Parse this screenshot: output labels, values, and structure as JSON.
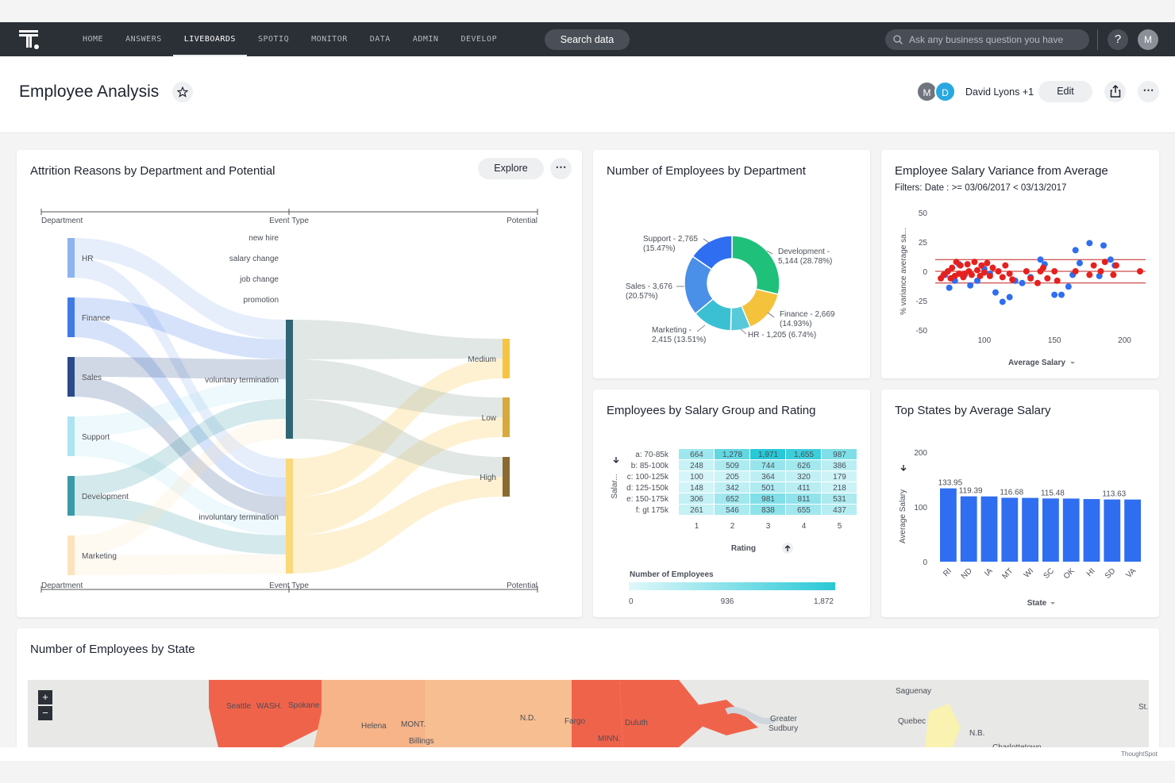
{
  "nav": {
    "items": [
      {
        "label": "HOME",
        "active": false
      },
      {
        "label": "ANSWERS",
        "active": false
      },
      {
        "label": "LIVEBOARDS",
        "active": true
      },
      {
        "label": "SPOTIQ",
        "active": false
      },
      {
        "label": "MONITOR",
        "active": false
      },
      {
        "label": "DATA",
        "active": false
      },
      {
        "label": "ADMIN",
        "active": false
      },
      {
        "label": "DEVELOP",
        "active": false
      }
    ],
    "search_button": "Search data",
    "ask_placeholder": "Ask any business question you have",
    "help_label": "?",
    "user_initial": "M"
  },
  "header": {
    "title": "Employee Analysis",
    "avatars": [
      "M",
      "D"
    ],
    "owner": "David Lyons +1",
    "edit_label": "Edit"
  },
  "sankey": {
    "title": "Attrition Reasons by Department and Potential",
    "explore_label": "Explore",
    "col_left": "Department",
    "col_mid": "Event Type",
    "col_right": "Potential",
    "departments": [
      "HR",
      "Finance",
      "Sales",
      "Support",
      "Development",
      "Marketing"
    ],
    "event_labels": [
      "new hire",
      "salary change",
      "job change",
      "promotion",
      "voluntary termination",
      "involuntary termination"
    ],
    "potentials": [
      "Medium",
      "Low",
      "High"
    ],
    "colors": {
      "HR": "#8fb3f0",
      "Finance": "#3f79e6",
      "Sales": "#2a4a8a",
      "Support": "#aee3f2",
      "Development": "#3a9aa6",
      "Marketing": "#fbe3bd",
      "voluntary": "#2f6674",
      "involuntary": "#fbd87a",
      "Medium": "#f6c443",
      "Low": "#d7a83d",
      "High": "#8a6a2e"
    }
  },
  "donut": {
    "title": "Number of Employees by Department",
    "chart_data": {
      "type": "pie",
      "title": "Number of Employees by Department",
      "slices": [
        {
          "label": "Development",
          "value": 5144,
          "pct": "28.78%",
          "color": "#1fc07a"
        },
        {
          "label": "Finance",
          "value": 2669,
          "pct": "14.93%",
          "color": "#f5c23c"
        },
        {
          "label": "HR",
          "value": 1205,
          "pct": "6.74%",
          "color": "#57c9d8"
        },
        {
          "label": "Marketing",
          "value": 2415,
          "pct": "13.51%",
          "color": "#3bbfd3"
        },
        {
          "label": "Sales",
          "value": 3676,
          "pct": "20.57%",
          "color": "#4a8fe8"
        },
        {
          "label": "Support",
          "value": 2765,
          "pct": "15.47%",
          "color": "#2f6ef0"
        }
      ]
    },
    "labels": [
      {
        "l1": "Support - 2,765",
        "l2": "(15.47%)"
      },
      {
        "l1": "Development -",
        "l2": "5,144 (28.78%)"
      },
      {
        "l1": "Sales - 3,676",
        "l2": "(20.57%)"
      },
      {
        "l1": "Finance - 2,669",
        "l2": "(14.93%)"
      },
      {
        "l1": "Marketing -",
        "l2": "2,415 (13.51%)"
      },
      {
        "l1": "HR - 1,205 (6.74%)",
        "l2": ""
      }
    ]
  },
  "scatter": {
    "title": "Employee Salary Variance from Average",
    "filter": "Filters: Date : >= 03/06/2017 < 03/13/2017",
    "chart_data": {
      "type": "scatter",
      "xlabel": "Average Salary",
      "ylabel": "% variance average sa...",
      "xlim": [
        65,
        215
      ],
      "ylim": [
        -50,
        50
      ],
      "xticks": [
        100,
        150,
        200
      ],
      "yticks": [
        50,
        25,
        0,
        -25,
        -50
      ],
      "ref_lines": [
        10,
        0,
        -10
      ],
      "series": [
        {
          "name": "",
          "color": "#2f6ef0",
          "points": [
            [
              72,
              -3
            ],
            [
              75,
              -14
            ],
            [
              79,
              -8
            ],
            [
              82,
              6
            ],
            [
              86,
              -3
            ],
            [
              90,
              -12
            ],
            [
              95,
              -8
            ],
            [
              100,
              2
            ],
            [
              104,
              -2
            ],
            [
              108,
              -18
            ],
            [
              113,
              -26
            ],
            [
              118,
              -22
            ],
            [
              122,
              -8
            ],
            [
              127,
              -10
            ],
            [
              133,
              -5
            ],
            [
              140,
              10
            ],
            [
              143,
              6
            ],
            [
              150,
              -20
            ],
            [
              155,
              -20
            ],
            [
              160,
              -13
            ],
            [
              163,
              -3
            ],
            [
              165,
              18
            ],
            [
              168,
              7
            ],
            [
              175,
              24
            ],
            [
              182,
              -4
            ],
            [
              185,
              22
            ],
            [
              190,
              10
            ],
            [
              193,
              5
            ]
          ]
        },
        {
          "name": "",
          "color": "#e5211f",
          "points": [
            [
              69,
              -6
            ],
            [
              71,
              -3
            ],
            [
              74,
              0
            ],
            [
              76,
              -6
            ],
            [
              77,
              3
            ],
            [
              79,
              -4
            ],
            [
              80,
              8
            ],
            [
              82,
              -2
            ],
            [
              83,
              5
            ],
            [
              85,
              -5
            ],
            [
              86,
              -2
            ],
            [
              88,
              6
            ],
            [
              89,
              0
            ],
            [
              91,
              -3
            ],
            [
              93,
              8
            ],
            [
              95,
              1
            ],
            [
              97,
              -4
            ],
            [
              98,
              5
            ],
            [
              100,
              -1
            ],
            [
              102,
              7
            ],
            [
              104,
              -4
            ],
            [
              106,
              3
            ],
            [
              110,
              0
            ],
            [
              113,
              -5
            ],
            [
              115,
              5
            ],
            [
              118,
              -2
            ],
            [
              120,
              -7
            ],
            [
              130,
              0
            ],
            [
              133,
              -6
            ],
            [
              138,
              -10
            ],
            [
              140,
              0
            ],
            [
              142,
              3
            ],
            [
              145,
              -6
            ],
            [
              150,
              0
            ],
            [
              152,
              -8
            ],
            [
              165,
              0
            ],
            [
              175,
              -3
            ],
            [
              178,
              5
            ],
            [
              183,
              0
            ],
            [
              186,
              8
            ],
            [
              192,
              -3
            ],
            [
              194,
              5
            ],
            [
              211,
              0
            ]
          ]
        }
      ]
    }
  },
  "heatmap": {
    "title": "Employees by Salary Group and Rating",
    "ylabel": "Salar...",
    "xlabel": "Rating",
    "legend_title": "Number of Employees",
    "legend_ticks": [
      "0",
      "936",
      "1,872"
    ],
    "chart_data": {
      "type": "heatmap",
      "rows": [
        "a: 70-85k",
        "b: 85-100k",
        "c: 100-125k",
        "d: 125-150k",
        "e: 150-175k",
        "f: gt 175k"
      ],
      "cols": [
        "1",
        "2",
        "3",
        "4",
        "5"
      ],
      "values": [
        [
          664,
          1278,
          1971,
          1655,
          987
        ],
        [
          248,
          509,
          744,
          626,
          386
        ],
        [
          100,
          205,
          364,
          320,
          179
        ],
        [
          148,
          342,
          501,
          411,
          218
        ],
        [
          306,
          652,
          981,
          811,
          531
        ],
        [
          261,
          546,
          838,
          655,
          437
        ]
      ],
      "display": [
        [
          "664",
          "1,278",
          "1,971",
          "1,655",
          "987"
        ],
        [
          "248",
          "509",
          "744",
          "626",
          "386"
        ],
        [
          "100",
          "205",
          "364",
          "320",
          "179"
        ],
        [
          "148",
          "342",
          "501",
          "411",
          "218"
        ],
        [
          "306",
          "652",
          "981",
          "811",
          "531"
        ],
        [
          "261",
          "546",
          "838",
          "655",
          "437"
        ]
      ],
      "scale": [
        0,
        1872
      ]
    }
  },
  "bars": {
    "title": "Top States by Average Salary",
    "chart_data": {
      "type": "bar",
      "xlabel": "State",
      "ylabel": "Average Salary",
      "ylim": [
        0,
        200
      ],
      "yticks": [
        200,
        100,
        0
      ],
      "categories": [
        "RI",
        "ND",
        "IA",
        "MT",
        "WI",
        "SC",
        "OK",
        "HI",
        "SD",
        "VA"
      ],
      "values": [
        133.95,
        119.39,
        119.2,
        116.68,
        116.5,
        115.48,
        115.3,
        114.4,
        113.63,
        113.5
      ],
      "value_labels": [
        "133.95",
        "119.39",
        "",
        "116.68",
        "",
        "115.48",
        "",
        "",
        "113.63",
        ""
      ],
      "color": "#2f6ef0"
    }
  },
  "map": {
    "title": "Number of Employees by State",
    "zoom_in": "+",
    "zoom_out": "−",
    "place_labels": [
      "Seattle",
      "WASH.",
      "Spokane",
      "Helena",
      "MONT.",
      "Billings",
      "N.D.",
      "Fargo",
      "Duluth",
      "MINN.",
      "Greater",
      "Sudbury",
      "Saguenay",
      "Quebec",
      "N.B.",
      "Charlottetown",
      "St."
    ]
  },
  "footer": {
    "brand": "ThoughtSpot"
  }
}
